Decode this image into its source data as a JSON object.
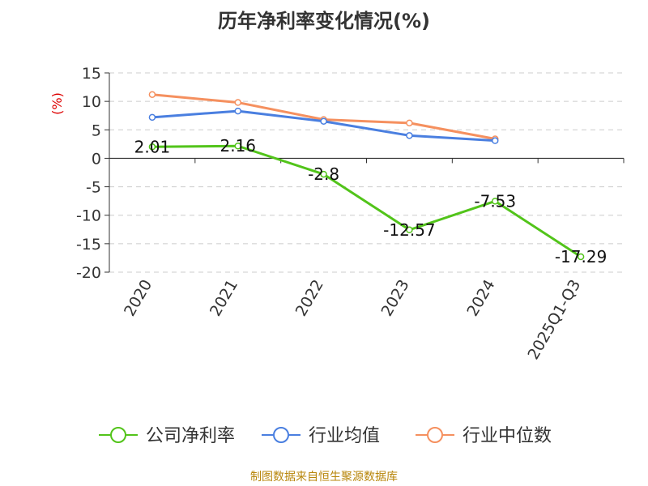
{
  "chart_data": {
    "type": "line",
    "title": "历年净利率变化情况(%)",
    "ylabel": "(%)",
    "categories": [
      "2020",
      "2021",
      "2022",
      "2023",
      "2024",
      "2025Q1-Q3"
    ],
    "ylim": [
      -20,
      15
    ],
    "yticks": [
      "15",
      "10",
      "5",
      "0",
      "-5",
      "-10",
      "-15",
      "-20"
    ],
    "grid": true,
    "legend_position": "bottom",
    "series": [
      {
        "name": "公司净利率",
        "color": "#52c41a",
        "values": [
          2.01,
          2.16,
          -2.8,
          -12.57,
          -7.53,
          -17.29
        ],
        "labels": [
          "2.01",
          "2.16",
          "-2.8",
          "-12.57",
          "-7.53",
          "-17.29"
        ]
      },
      {
        "name": "行业均值",
        "color": "#4a7fe0",
        "values": [
          7.2,
          8.3,
          6.5,
          4.0,
          3.1,
          null
        ]
      },
      {
        "name": "行业中位数",
        "color": "#f5905f",
        "values": [
          11.2,
          9.8,
          6.8,
          6.2,
          3.4,
          null
        ]
      }
    ]
  },
  "source_text": "制图数据来自恒生聚源数据库"
}
